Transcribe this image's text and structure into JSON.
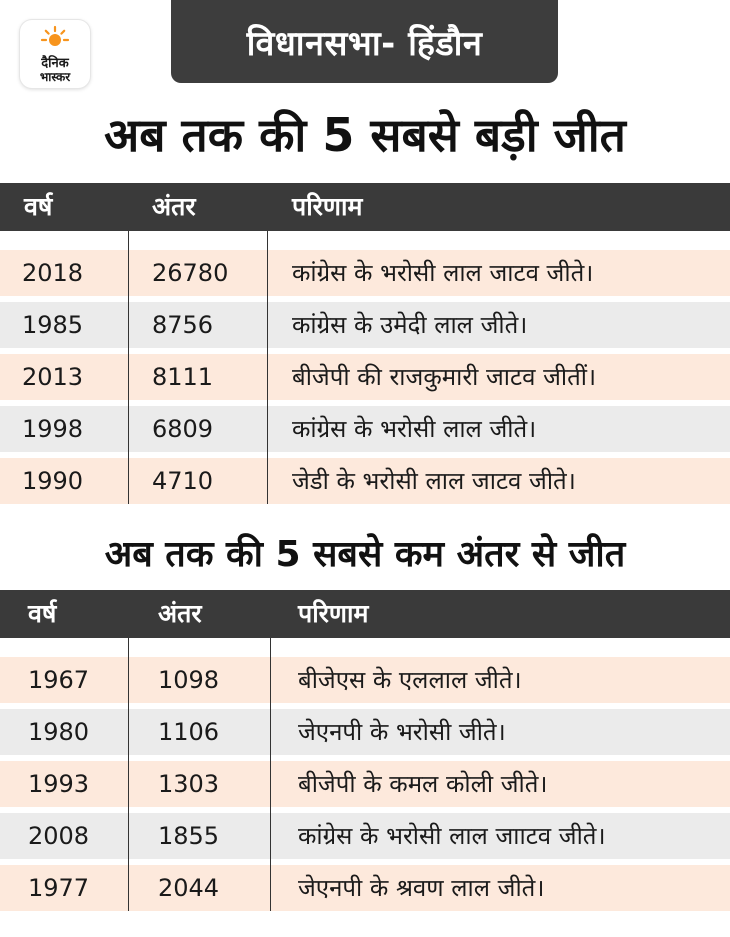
{
  "brand": {
    "logo_text": "दैनिक भास्कर",
    "accent": "#f7941d"
  },
  "header": {
    "title": "विधानसभा- हिंडौन"
  },
  "colors": {
    "row_odd": "#fde9dc",
    "row_even": "#ebebeb",
    "header_bg": "#3a3a3a"
  },
  "table_largest": {
    "title": "अब तक की 5 सबसे बड़ी जीत",
    "columns": [
      "वर्ष",
      "अंतर",
      "परिणाम"
    ],
    "rows": [
      {
        "year": "2018",
        "margin": "26780",
        "result": "कांग्रेस के भरोसी लाल जाटव जीते।"
      },
      {
        "year": "1985",
        "margin": "8756",
        "result": "कांग्रेस के उमेदी लाल जीते।"
      },
      {
        "year": "2013",
        "margin": "8111",
        "result": "बीजेपी की राजकुमारी जाटव जीतीं।"
      },
      {
        "year": "1998",
        "margin": "6809",
        "result": "कांग्रेस के भरोसी लाल जीते।"
      },
      {
        "year": "1990",
        "margin": "4710",
        "result": "जेडी के भरोसी लाल जाटव जीते।"
      }
    ]
  },
  "table_smallest": {
    "title": "अब तक की 5 सबसे कम अंतर से जीत",
    "columns": [
      "वर्ष",
      "अंतर",
      "परिणाम"
    ],
    "rows": [
      {
        "year": "1967",
        "margin": "1098",
        "result": "बीजेएस के एललाल जीते।"
      },
      {
        "year": "1980",
        "margin": "1106",
        "result": "जेएनपी के भरोसी जीते।"
      },
      {
        "year": "1993",
        "margin": "1303",
        "result": "बीजेपी के कमल कोली जीते।"
      },
      {
        "year": "2008",
        "margin": "1855",
        "result": "कांग्रेस के भरोसी लाल जााटव जीते।"
      },
      {
        "year": "1977",
        "margin": "2044",
        "result": "जेएनपी के श्रवण लाल जीते।"
      }
    ]
  }
}
